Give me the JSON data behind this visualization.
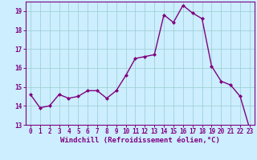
{
  "x": [
    0,
    1,
    2,
    3,
    4,
    5,
    6,
    7,
    8,
    9,
    10,
    11,
    12,
    13,
    14,
    15,
    16,
    17,
    18,
    19,
    20,
    21,
    22,
    23
  ],
  "y": [
    14.6,
    13.9,
    14.0,
    14.6,
    14.4,
    14.5,
    14.8,
    14.8,
    14.4,
    14.8,
    15.6,
    16.5,
    16.6,
    16.7,
    18.8,
    18.4,
    19.3,
    18.9,
    18.6,
    16.1,
    15.3,
    15.1,
    14.5,
    12.8
  ],
  "line_color": "#800080",
  "marker": "D",
  "marker_size": 2,
  "background_color": "#cceeff",
  "grid_color": "#99cccc",
  "xlabel": "Windchill (Refroidissement éolien,°C)",
  "xlabel_color": "#800080",
  "tick_color": "#800080",
  "ylim": [
    13,
    19.5
  ],
  "xlim": [
    -0.5,
    23.5
  ],
  "yticks": [
    13,
    14,
    15,
    16,
    17,
    18,
    19
  ],
  "xticks": [
    0,
    1,
    2,
    3,
    4,
    5,
    6,
    7,
    8,
    9,
    10,
    11,
    12,
    13,
    14,
    15,
    16,
    17,
    18,
    19,
    20,
    21,
    22,
    23
  ],
  "line_width": 1.0,
  "spine_color": "#800080",
  "tick_fontsize": 5.5,
  "xlabel_fontsize": 6.5
}
